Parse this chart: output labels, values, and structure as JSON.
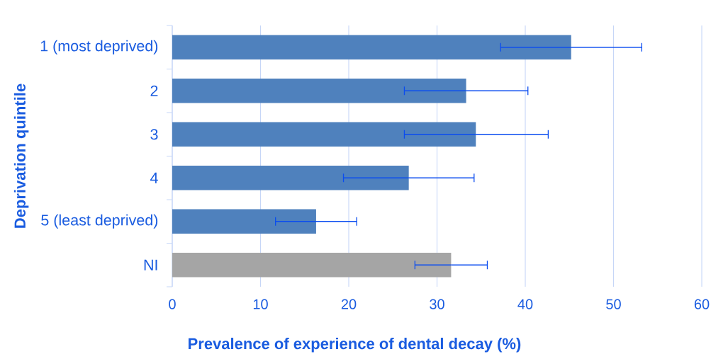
{
  "chart_data": {
    "type": "bar",
    "orientation": "horizontal",
    "xlabel": "Prevalence of experience of dental decay (%)",
    "ylabel": "Deprivation quintile",
    "categories": [
      "1 (most deprived)",
      "2",
      "3",
      "4",
      "5 (least deprived)",
      "NI"
    ],
    "values": [
      45.2,
      33.3,
      34.4,
      26.8,
      16.3,
      31.6
    ],
    "colors": [
      "#4f81bd",
      "#4f81bd",
      "#4f81bd",
      "#4f81bd",
      "#4f81bd",
      "#a5a5a5"
    ],
    "errors": [
      [
        37.2,
        53.2
      ],
      [
        26.3,
        40.3
      ],
      [
        26.3,
        42.6
      ],
      [
        19.4,
        34.2
      ],
      [
        11.7,
        20.9
      ],
      [
        27.5,
        35.7
      ]
    ],
    "xlim": [
      0,
      60
    ],
    "xticks": [
      0,
      10,
      20,
      30,
      40,
      50,
      60
    ],
    "grid": "x"
  }
}
